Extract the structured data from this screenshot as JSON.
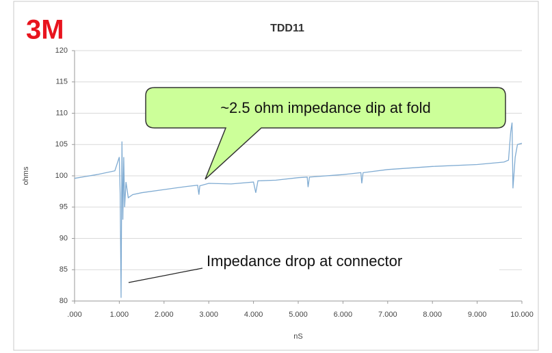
{
  "logo": "3M",
  "chart_data": {
    "type": "line",
    "title": "TDD11",
    "x_label": "nS",
    "y_label": "ohms",
    "x": [
      0,
      0.5,
      0.9,
      1.0,
      1.02,
      1.04,
      1.06,
      1.08,
      1.1,
      1.12,
      1.15,
      1.2,
      1.3,
      1.5,
      2.0,
      2.5,
      2.75,
      2.78,
      2.8,
      3.0,
      3.5,
      4.0,
      4.05,
      4.1,
      4.5,
      5.0,
      5.2,
      5.22,
      5.25,
      6.0,
      6.4,
      6.42,
      6.45,
      7.0,
      8.0,
      9.0,
      9.6,
      9.7,
      9.75,
      9.78,
      9.8,
      9.85,
      9.9,
      10.0
    ],
    "series": [
      {
        "name": "TDD11",
        "color": "#7fabd2",
        "values": [
          99.6,
          100.2,
          100.8,
          103,
          97,
          80.5,
          105.5,
          93,
          103,
          95,
          99,
          96.5,
          97,
          97.3,
          97.8,
          98.3,
          98.5,
          97,
          98.4,
          98.8,
          98.7,
          99,
          97.3,
          99.2,
          99.3,
          99.7,
          99.8,
          98.2,
          99.8,
          100.2,
          100.5,
          98.8,
          100.5,
          101,
          101.5,
          101.8,
          102.2,
          102.5,
          107,
          108.5,
          98,
          103,
          105,
          105.2
        ]
      }
    ],
    "xlim": [
      0,
      10
    ],
    "xticks": [
      {
        "value": 0,
        "label": ".000"
      },
      {
        "value": 1,
        "label": "1.000"
      },
      {
        "value": 2,
        "label": "2.000"
      },
      {
        "value": 3,
        "label": "3.000"
      },
      {
        "value": 4,
        "label": "4.000"
      },
      {
        "value": 5,
        "label": "5.000"
      },
      {
        "value": 6,
        "label": "6.000"
      },
      {
        "value": 7,
        "label": "7.000"
      },
      {
        "value": 8,
        "label": "8.000"
      },
      {
        "value": 9,
        "label": "9.000"
      },
      {
        "value": 10,
        "label": "10.000"
      }
    ],
    "ylim": [
      80,
      120
    ],
    "yticks": [
      80,
      85,
      90,
      95,
      100,
      105,
      110,
      115,
      120
    ],
    "grid": true,
    "annotations": [
      {
        "text": "~2.5 ohm impedance dip at fold"
      },
      {
        "text": "Impedance drop at connector"
      }
    ]
  }
}
